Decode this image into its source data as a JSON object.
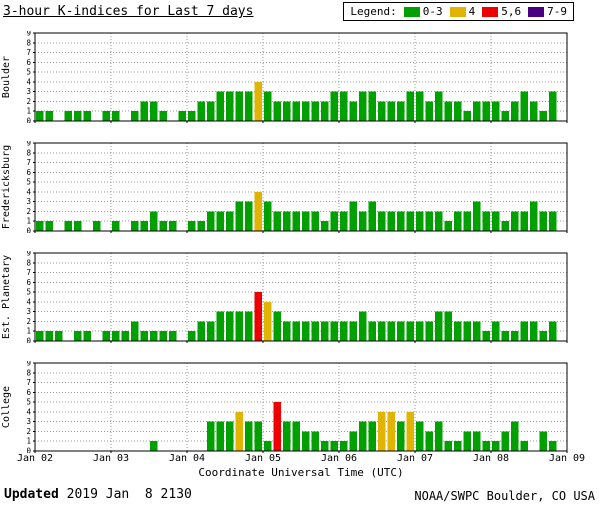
{
  "title": "3-hour K-indices for Last 7 days",
  "legend": {
    "label": "Legend:",
    "items": [
      {
        "label": "0-3",
        "color": "#00a000"
      },
      {
        "label": "4",
        "color": "#e0b400"
      },
      {
        "label": "5,6",
        "color": "#ee0000"
      },
      {
        "label": "7-9",
        "color": "#4b0082"
      }
    ]
  },
  "footer": {
    "updated_label": "Updated",
    "updated_value": " 2019 Jan  8 2130",
    "credit": "NOAA/SWPC Boulder, CO USA"
  },
  "chart_data": {
    "type": "bar",
    "title": "3-hour K-indices for Last 7 days",
    "xlabel": "Coordinate Universal Time (UTC)",
    "x_tick_labels": [
      "Jan 02",
      "Jan 03",
      "Jan 04",
      "Jan 05",
      "Jan 06",
      "Jan 07",
      "Jan 08",
      "Jan 09"
    ],
    "bars_per_day": 8,
    "bar_interval_hours": 3,
    "ylim": [
      0,
      9
    ],
    "y_ticks": [
      0,
      1,
      2,
      3,
      4,
      5,
      6,
      7,
      8,
      9
    ],
    "grid": "dotted horizontal lines at each K level, dotted vertical lines at each day boundary",
    "legend_position": "top-right",
    "colors": {
      "k0_3": "#00a000",
      "k4": "#e0b400",
      "k5_6": "#ee0000",
      "k7_9": "#4b0082"
    },
    "series": [
      {
        "name": "Boulder",
        "values": [
          1,
          1,
          0,
          1,
          1,
          1,
          0,
          1,
          1,
          0,
          1,
          2,
          2,
          1,
          0,
          1,
          1,
          2,
          2,
          3,
          3,
          3,
          3,
          4,
          3,
          2,
          2,
          2,
          2,
          2,
          2,
          3,
          3,
          2,
          3,
          3,
          2,
          2,
          2,
          3,
          3,
          2,
          3,
          2,
          2,
          1,
          2,
          2,
          2,
          1,
          2,
          3,
          2,
          1,
          3
        ]
      },
      {
        "name": "Fredericksburg",
        "values": [
          1,
          1,
          0,
          1,
          1,
          0,
          1,
          0,
          1,
          0,
          1,
          1,
          2,
          1,
          1,
          0,
          1,
          1,
          2,
          2,
          2,
          3,
          3,
          4,
          3,
          2,
          2,
          2,
          2,
          2,
          1,
          2,
          2,
          3,
          2,
          3,
          2,
          2,
          2,
          2,
          2,
          2,
          2,
          1,
          2,
          2,
          3,
          2,
          2,
          1,
          2,
          2,
          3,
          2,
          2
        ]
      },
      {
        "name": "Est. Planetary",
        "values": [
          1,
          1,
          1,
          0,
          1,
          1,
          0,
          1,
          1,
          1,
          2,
          1,
          1,
          1,
          1,
          0,
          1,
          2,
          2,
          3,
          3,
          3,
          3,
          5,
          4,
          3,
          2,
          2,
          2,
          2,
          2,
          2,
          2,
          2,
          3,
          2,
          2,
          2,
          2,
          2,
          2,
          2,
          3,
          3,
          2,
          2,
          2,
          1,
          2,
          1,
          1,
          2,
          2,
          1,
          2
        ]
      },
      {
        "name": "College",
        "values": [
          0,
          0,
          0,
          0,
          0,
          0,
          0,
          0,
          0,
          0,
          0,
          0,
          1,
          0,
          0,
          0,
          0,
          0,
          3,
          3,
          3,
          4,
          3,
          3,
          1,
          5,
          3,
          3,
          2,
          2,
          1,
          1,
          1,
          2,
          3,
          3,
          4,
          4,
          3,
          4,
          3,
          2,
          3,
          1,
          1,
          2,
          2,
          1,
          1,
          2,
          3,
          1,
          0,
          2,
          1
        ]
      }
    ]
  }
}
